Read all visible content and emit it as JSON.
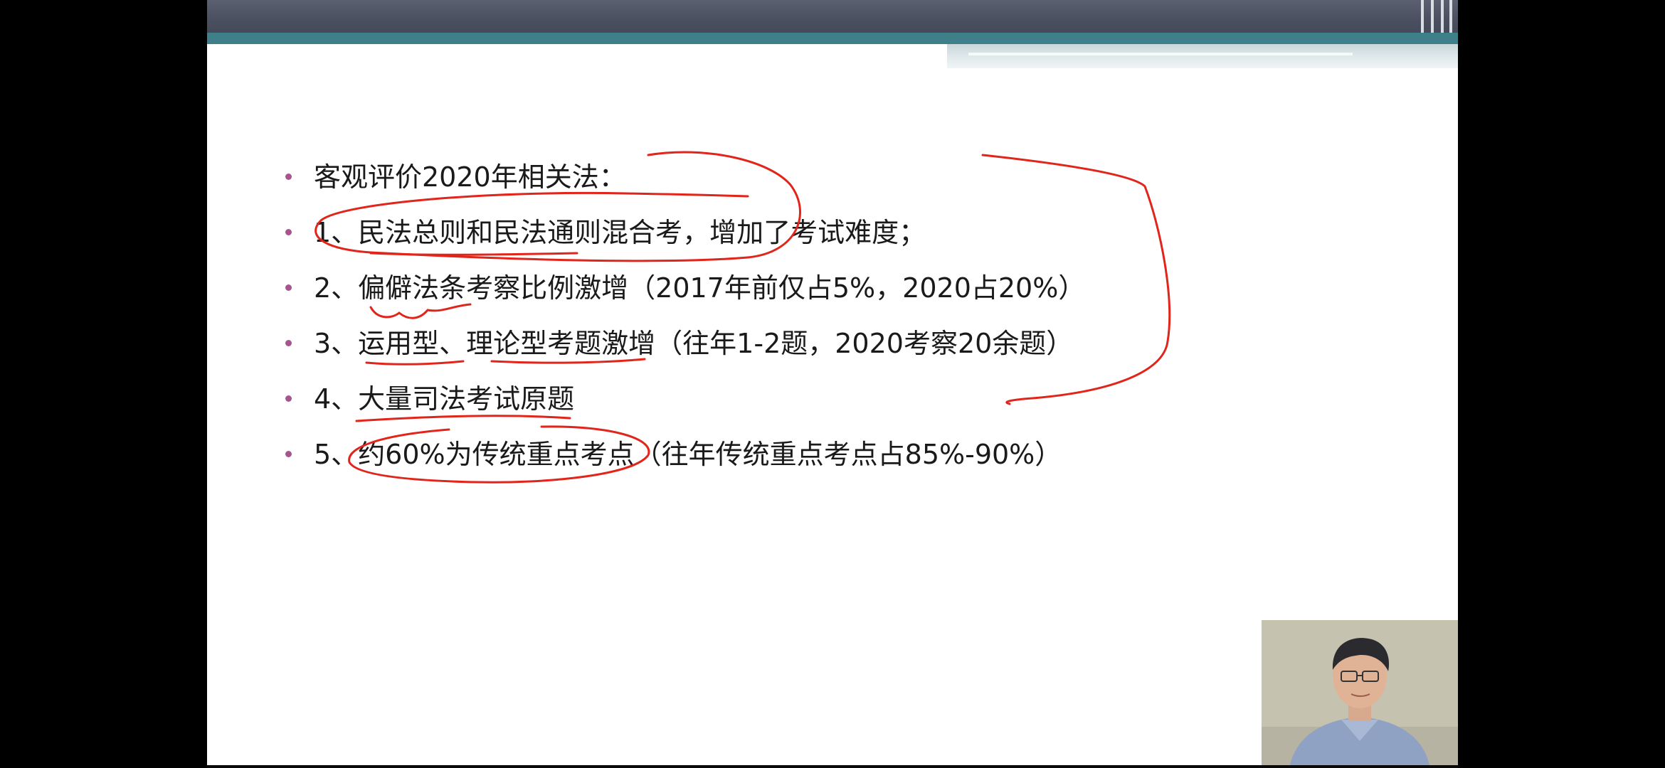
{
  "slide": {
    "bullets": [
      {
        "text": "客观评价2020年相关法："
      },
      {
        "text": "1、民法总则和民法通则混合考，增加了考试难度；"
      },
      {
        "text": "2、偏僻法条考察比例激增（2017年前仅占5%，2020占20%）"
      },
      {
        "text": "3、运用型、理论型考题激增（往年1-2题，2020考察20余题）"
      },
      {
        "text": "4、大量司法考试原题"
      },
      {
        "text": "5、约60%为传统重点考点（往年传统重点考点占85%-90%）"
      }
    ],
    "colors": {
      "header": "#4a5060",
      "teal_band": "#3f7f8a",
      "bullet_dot": "#a7558f",
      "annotation_ink": "#e1251b"
    }
  },
  "webcam": {
    "subject": "presenter-video"
  }
}
